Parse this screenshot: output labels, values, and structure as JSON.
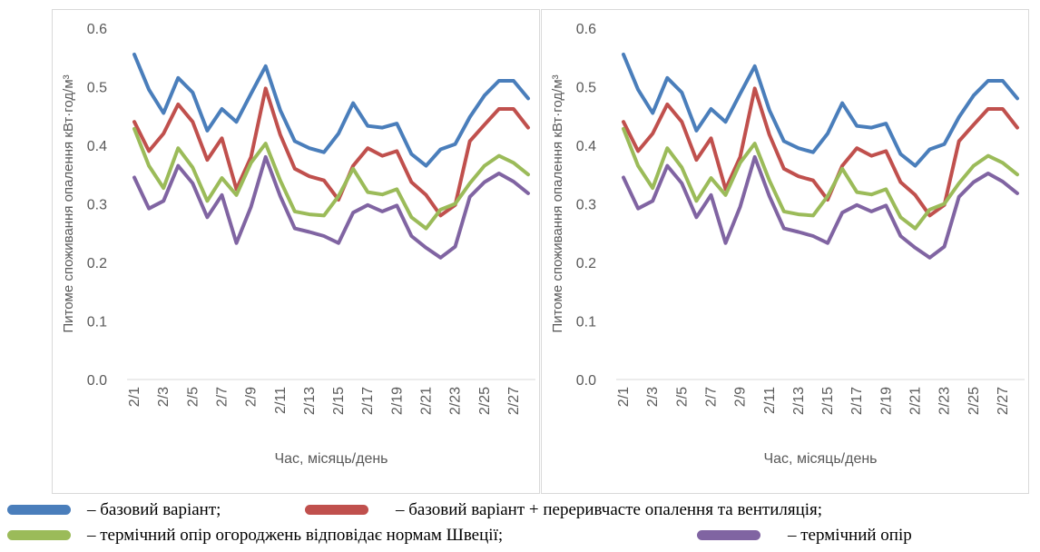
{
  "colors": {
    "base": "#4a7ebb",
    "intermittent": "#c0504d",
    "sweden": "#9bbb59",
    "thermal": "#8064a2",
    "grid": "#d9d9d9",
    "axis_text": "#595959"
  },
  "legend": {
    "items": [
      {
        "key": "base",
        "text": "– базовий  варіант;"
      },
      {
        "key": "intermittent",
        "text": "– базовий варіант + переривчасте опалення та вентиляція;"
      },
      {
        "key": "sweden",
        "text": "– термічний опір огороджень відповідає нормам Швеції;"
      },
      {
        "key": "thermal",
        "text": "– термічний опір"
      }
    ]
  },
  "chart_data": [
    {
      "type": "line",
      "xlabel": "Час, місяць/день",
      "ylabel": "Питоме споживання опалення кВт·год/м³",
      "ylim": [
        0,
        0.6
      ],
      "yticks": [
        "0.0",
        "0.1",
        "0.2",
        "0.3",
        "0.4",
        "0.5",
        "0.6"
      ],
      "grid": false,
      "categories": [
        "2/1",
        "2/2",
        "2/3",
        "2/4",
        "2/5",
        "2/6",
        "2/7",
        "2/8",
        "2/9",
        "2/10",
        "2/11",
        "2/12",
        "2/13",
        "2/14",
        "2/15",
        "2/16",
        "2/17",
        "2/18",
        "2/19",
        "2/20",
        "2/21",
        "2/22",
        "2/23",
        "2/24",
        "2/25",
        "2/26",
        "2/27",
        "2/28"
      ],
      "tick_labels": [
        "2/1",
        "2/3",
        "2/5",
        "2/7",
        "2/9",
        "2/11",
        "2/13",
        "2/15",
        "2/17",
        "2/19",
        "2/21",
        "2/23",
        "2/25",
        "2/27"
      ],
      "series": [
        {
          "key": "base",
          "values": [
            0.555,
            0.495,
            0.455,
            0.515,
            0.49,
            0.425,
            0.462,
            0.44,
            0.488,
            0.535,
            0.46,
            0.407,
            0.395,
            0.388,
            0.42,
            0.472,
            0.433,
            0.43,
            0.437,
            0.385,
            0.365,
            0.393,
            0.402,
            0.448,
            0.485,
            0.51,
            0.51,
            0.48
          ]
        },
        {
          "key": "intermittent",
          "values": [
            0.44,
            0.39,
            0.42,
            0.47,
            0.44,
            0.375,
            0.412,
            0.325,
            0.38,
            0.497,
            0.418,
            0.36,
            0.347,
            0.34,
            0.307,
            0.365,
            0.395,
            0.382,
            0.39,
            0.337,
            0.315,
            0.28,
            0.298,
            0.407,
            0.435,
            0.462,
            0.462,
            0.43
          ]
        },
        {
          "key": "sweden",
          "values": [
            0.428,
            0.365,
            0.327,
            0.395,
            0.362,
            0.305,
            0.344,
            0.315,
            0.37,
            0.403,
            0.34,
            0.287,
            0.282,
            0.28,
            0.313,
            0.36,
            0.32,
            0.316,
            0.325,
            0.277,
            0.258,
            0.29,
            0.3,
            0.335,
            0.365,
            0.382,
            0.37,
            0.35
          ]
        },
        {
          "key": "thermal",
          "values": [
            0.345,
            0.292,
            0.305,
            0.365,
            0.335,
            0.277,
            0.315,
            0.233,
            0.295,
            0.38,
            0.313,
            0.258,
            0.252,
            0.245,
            0.233,
            0.285,
            0.298,
            0.287,
            0.297,
            0.245,
            0.225,
            0.208,
            0.227,
            0.312,
            0.337,
            0.352,
            0.338,
            0.318
          ]
        }
      ]
    },
    {
      "type": "line",
      "xlabel": "Час, місяць/день",
      "ylabel": "Питоме споживання опалення кВт·год/м³",
      "ylim": [
        0,
        0.6
      ],
      "yticks": [
        "0.0",
        "0.1",
        "0.2",
        "0.3",
        "0.4",
        "0.5",
        "0.6"
      ],
      "grid": false,
      "categories": [
        "2/1",
        "2/2",
        "2/3",
        "2/4",
        "2/5",
        "2/6",
        "2/7",
        "2/8",
        "2/9",
        "2/10",
        "2/11",
        "2/12",
        "2/13",
        "2/14",
        "2/15",
        "2/16",
        "2/17",
        "2/18",
        "2/19",
        "2/20",
        "2/21",
        "2/22",
        "2/23",
        "2/24",
        "2/25",
        "2/26",
        "2/27",
        "2/28"
      ],
      "tick_labels": [
        "2/1",
        "2/3",
        "2/5",
        "2/7",
        "2/9",
        "2/11",
        "2/13",
        "2/15",
        "2/17",
        "2/19",
        "2/21",
        "2/23",
        "2/25",
        "2/27"
      ],
      "series": [
        {
          "key": "base",
          "values": [
            0.555,
            0.495,
            0.455,
            0.515,
            0.49,
            0.425,
            0.462,
            0.44,
            0.488,
            0.535,
            0.46,
            0.407,
            0.395,
            0.388,
            0.42,
            0.472,
            0.433,
            0.43,
            0.437,
            0.385,
            0.365,
            0.393,
            0.402,
            0.448,
            0.485,
            0.51,
            0.51,
            0.48
          ]
        },
        {
          "key": "intermittent",
          "values": [
            0.44,
            0.39,
            0.42,
            0.47,
            0.44,
            0.375,
            0.412,
            0.325,
            0.38,
            0.497,
            0.418,
            0.36,
            0.347,
            0.34,
            0.307,
            0.365,
            0.395,
            0.382,
            0.39,
            0.337,
            0.315,
            0.28,
            0.298,
            0.407,
            0.435,
            0.462,
            0.462,
            0.43
          ]
        },
        {
          "key": "sweden",
          "values": [
            0.428,
            0.365,
            0.327,
            0.395,
            0.362,
            0.305,
            0.344,
            0.315,
            0.37,
            0.403,
            0.34,
            0.287,
            0.282,
            0.28,
            0.313,
            0.36,
            0.32,
            0.316,
            0.325,
            0.277,
            0.258,
            0.29,
            0.3,
            0.335,
            0.365,
            0.382,
            0.37,
            0.35
          ]
        },
        {
          "key": "thermal",
          "values": [
            0.345,
            0.292,
            0.305,
            0.365,
            0.335,
            0.277,
            0.315,
            0.233,
            0.295,
            0.38,
            0.313,
            0.258,
            0.252,
            0.245,
            0.233,
            0.285,
            0.298,
            0.287,
            0.297,
            0.245,
            0.225,
            0.208,
            0.227,
            0.312,
            0.337,
            0.352,
            0.338,
            0.318
          ]
        }
      ]
    }
  ]
}
